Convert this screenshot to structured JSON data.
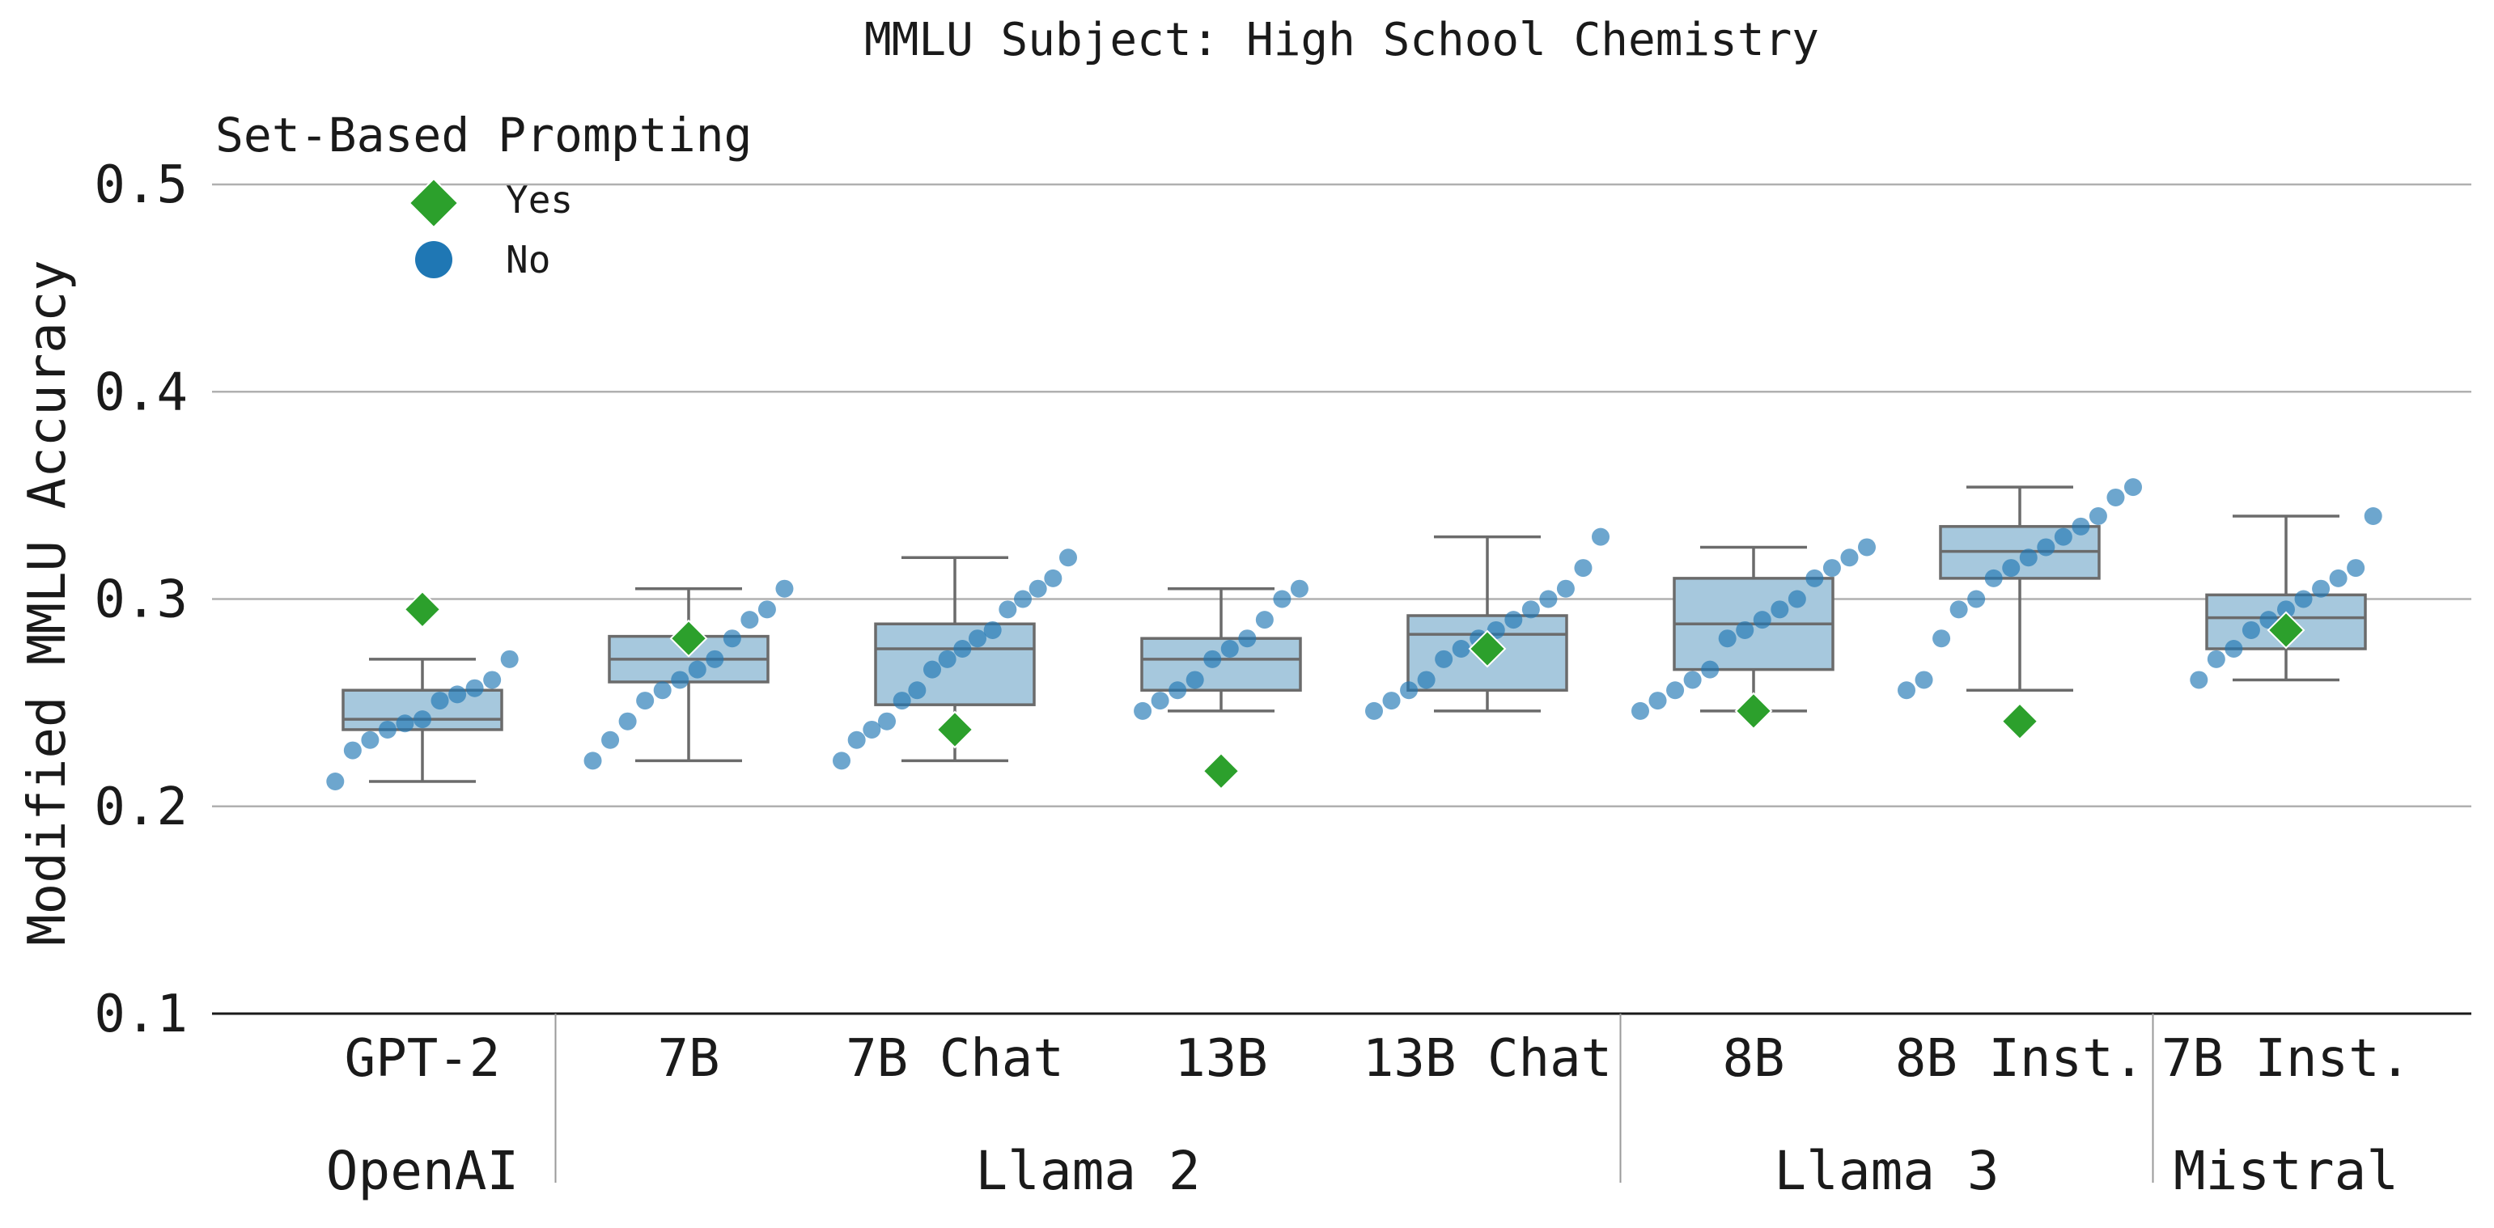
{
  "chart_data": {
    "type": "box",
    "title": "MMLU Subject: High School Chemistry",
    "xlabel": "",
    "ylabel": "Modified MMLU Accuracy",
    "ylim": [
      0.1,
      0.5
    ],
    "yticks": [
      0.1,
      0.2,
      0.3,
      0.4,
      0.5
    ],
    "grid": "horizontal",
    "legend": {
      "title": "Set-Based Prompting",
      "placement": "top-left",
      "entries": [
        {
          "label": "Yes",
          "marker": "diamond",
          "color": "#2ca02c"
        },
        {
          "label": "No",
          "marker": "circle",
          "color": "#1f77b4"
        }
      ]
    },
    "box_color": "#a6c8dd",
    "groups": [
      {
        "label": "OpenAI",
        "categories": [
          "GPT-2"
        ]
      },
      {
        "label": "Llama 2",
        "categories": [
          "7B",
          "7B Chat",
          "13B",
          "13B Chat"
        ]
      },
      {
        "label": "Llama 3",
        "categories": [
          "8B",
          "8B Inst."
        ]
      },
      {
        "label": "Mistral",
        "categories": [
          "7B Inst."
        ]
      }
    ],
    "categories": [
      "GPT-2",
      "7B",
      "7B Chat",
      "13B",
      "13B Chat",
      "8B",
      "8B Inst.",
      "7B Inst."
    ],
    "boxes": [
      {
        "whisker_low": 0.212,
        "q1": 0.237,
        "median": 0.242,
        "q3": 0.256,
        "whisker_high": 0.271
      },
      {
        "whisker_low": 0.222,
        "q1": 0.26,
        "median": 0.271,
        "q3": 0.282,
        "whisker_high": 0.305
      },
      {
        "whisker_low": 0.222,
        "q1": 0.249,
        "median": 0.276,
        "q3": 0.288,
        "whisker_high": 0.32
      },
      {
        "whisker_low": 0.246,
        "q1": 0.256,
        "median": 0.271,
        "q3": 0.281,
        "whisker_high": 0.305
      },
      {
        "whisker_low": 0.246,
        "q1": 0.256,
        "median": 0.283,
        "q3": 0.292,
        "whisker_high": 0.33
      },
      {
        "whisker_low": 0.246,
        "q1": 0.266,
        "median": 0.288,
        "q3": 0.31,
        "whisker_high": 0.325
      },
      {
        "whisker_low": 0.256,
        "q1": 0.31,
        "median": 0.323,
        "q3": 0.335,
        "whisker_high": 0.354
      },
      {
        "whisker_low": 0.261,
        "q1": 0.276,
        "median": 0.291,
        "q3": 0.302,
        "whisker_high": 0.34
      }
    ],
    "series": [
      {
        "name": "No",
        "color": "#1f77b4",
        "values": [
          [
            0.212,
            0.227,
            0.232,
            0.237,
            0.24,
            0.242,
            0.251,
            0.254,
            0.257,
            0.261,
            0.271
          ],
          [
            0.222,
            0.232,
            0.241,
            0.251,
            0.256,
            0.261,
            0.266,
            0.271,
            0.281,
            0.29,
            0.295,
            0.305
          ],
          [
            0.222,
            0.232,
            0.237,
            0.241,
            0.251,
            0.256,
            0.266,
            0.271,
            0.276,
            0.281,
            0.285,
            0.295,
            0.3,
            0.305,
            0.31,
            0.32
          ],
          [
            0.246,
            0.251,
            0.256,
            0.261,
            0.271,
            0.276,
            0.281,
            0.29,
            0.3,
            0.305
          ],
          [
            0.246,
            0.251,
            0.256,
            0.261,
            0.271,
            0.276,
            0.281,
            0.285,
            0.29,
            0.295,
            0.3,
            0.305,
            0.315,
            0.33
          ],
          [
            0.246,
            0.251,
            0.256,
            0.261,
            0.266,
            0.281,
            0.285,
            0.29,
            0.295,
            0.3,
            0.31,
            0.315,
            0.32,
            0.325
          ],
          [
            0.256,
            0.261,
            0.281,
            0.295,
            0.3,
            0.31,
            0.315,
            0.32,
            0.325,
            0.33,
            0.335,
            0.34,
            0.349,
            0.354
          ],
          [
            0.261,
            0.271,
            0.276,
            0.285,
            0.29,
            0.295,
            0.3,
            0.305,
            0.31,
            0.315,
            0.34
          ]
        ]
      },
      {
        "name": "Yes",
        "color": "#2ca02c",
        "values": [
          0.295,
          0.281,
          0.237,
          0.217,
          0.276,
          0.246,
          0.241,
          0.285
        ]
      }
    ]
  }
}
